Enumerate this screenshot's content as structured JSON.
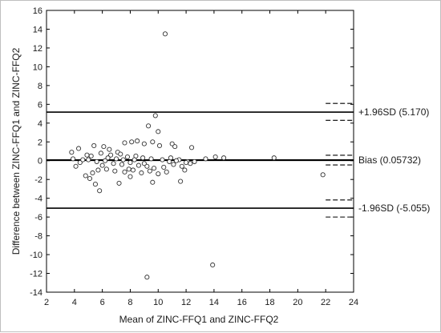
{
  "chart_data": {
    "type": "scatter",
    "title": "",
    "xlabel": "Mean of ZINC-FFQ1 and ZINC-FFQ2",
    "ylabel": "Difference between ZINC-FFQ1 and ZINC-FFQ2",
    "xlim": [
      2,
      24
    ],
    "ylim": [
      -14,
      16
    ],
    "xticks": [
      2,
      4,
      6,
      8,
      10,
      12,
      14,
      16,
      18,
      20,
      22,
      24
    ],
    "yticks": [
      -14,
      -12,
      -10,
      -8,
      -6,
      -4,
      -2,
      0,
      2,
      4,
      6,
      8,
      10,
      12,
      14,
      16
    ],
    "grid": false,
    "marker": "open-circle",
    "points": [
      [
        10.5,
        13.5
      ],
      [
        9.8,
        4.8
      ],
      [
        9.3,
        3.7
      ],
      [
        10.0,
        3.1
      ],
      [
        7.6,
        1.9
      ],
      [
        8.1,
        2.0
      ],
      [
        8.5,
        2.1
      ],
      [
        9.0,
        1.8
      ],
      [
        9.6,
        2.0
      ],
      [
        10.1,
        1.6
      ],
      [
        11.0,
        1.8
      ],
      [
        11.2,
        1.5
      ],
      [
        12.4,
        1.4
      ],
      [
        5.4,
        1.6
      ],
      [
        6.1,
        1.5
      ],
      [
        6.5,
        1.2
      ],
      [
        7.1,
        0.9
      ],
      [
        3.8,
        0.9
      ],
      [
        4.3,
        1.3
      ],
      [
        4.9,
        0.6
      ],
      [
        5.2,
        0.5
      ],
      [
        5.9,
        0.8
      ],
      [
        6.6,
        0.6
      ],
      [
        7.3,
        0.7
      ],
      [
        7.8,
        0.4
      ],
      [
        8.4,
        0.5
      ],
      [
        8.9,
        0.3
      ],
      [
        9.5,
        0.2
      ],
      [
        10.3,
        0.1
      ],
      [
        10.9,
        0.3
      ],
      [
        11.5,
        0.1
      ],
      [
        12.1,
        -0.1
      ],
      [
        13.4,
        0.2
      ],
      [
        14.1,
        0.4
      ],
      [
        14.7,
        0.3
      ],
      [
        18.3,
        0.3
      ],
      [
        3.9,
        0.2
      ],
      [
        4.4,
        -0.2
      ],
      [
        5.0,
        0.1
      ],
      [
        5.6,
        -0.1
      ],
      [
        6.2,
        0.0
      ],
      [
        6.8,
        -0.3
      ],
      [
        7.4,
        -0.4
      ],
      [
        8.0,
        -0.2
      ],
      [
        8.6,
        -0.5
      ],
      [
        9.2,
        -0.6
      ],
      [
        9.7,
        -0.8
      ],
      [
        10.4,
        -0.7
      ],
      [
        11.1,
        -0.4
      ],
      [
        11.7,
        -0.6
      ],
      [
        12.3,
        -0.3
      ],
      [
        4.1,
        -0.6
      ],
      [
        4.8,
        -1.6
      ],
      [
        5.3,
        -1.3
      ],
      [
        5.7,
        -1.0
      ],
      [
        6.3,
        -0.9
      ],
      [
        6.9,
        -1.1
      ],
      [
        7.6,
        -1.2
      ],
      [
        8.2,
        -1.0
      ],
      [
        8.8,
        -1.3
      ],
      [
        9.4,
        -1.1
      ],
      [
        10.0,
        -1.4
      ],
      [
        10.6,
        -1.2
      ],
      [
        11.9,
        -1.0
      ],
      [
        5.1,
        -1.9
      ],
      [
        5.5,
        -2.5
      ],
      [
        7.2,
        -2.4
      ],
      [
        8.0,
        -1.7
      ],
      [
        9.6,
        -2.3
      ],
      [
        11.6,
        -2.2
      ],
      [
        21.8,
        -1.5
      ],
      [
        5.8,
        -3.2
      ],
      [
        9.2,
        -12.4
      ],
      [
        13.9,
        -11.1
      ],
      [
        4.6,
        0.1
      ],
      [
        6.4,
        0.3
      ],
      [
        7.0,
        0.2
      ],
      [
        7.9,
        -0.9
      ],
      [
        8.3,
        0.1
      ],
      [
        9.0,
        -0.3
      ],
      [
        10.8,
        -0.1
      ],
      [
        11.3,
        0.0
      ],
      [
        12.0,
        -0.2
      ],
      [
        12.6,
        -0.1
      ],
      [
        6.0,
        -0.5
      ],
      [
        7.5,
        0.1
      ]
    ],
    "reference_lines": [
      {
        "name": "+1.96SD",
        "label": "+1.96SD (5.170)",
        "value": 5.17,
        "ci": [
          4.3,
          6.1
        ]
      },
      {
        "name": "Bias",
        "label": "Bias (0.05732)",
        "value": 0.05732,
        "ci": [
          -0.45,
          0.58
        ]
      },
      {
        "name": "-1.96SD",
        "label": "-1.96SD (-5.055)",
        "value": -5.055,
        "ci": [
          -6.0,
          -4.18
        ]
      }
    ],
    "ci_line_x_range": [
      22,
      24
    ]
  }
}
